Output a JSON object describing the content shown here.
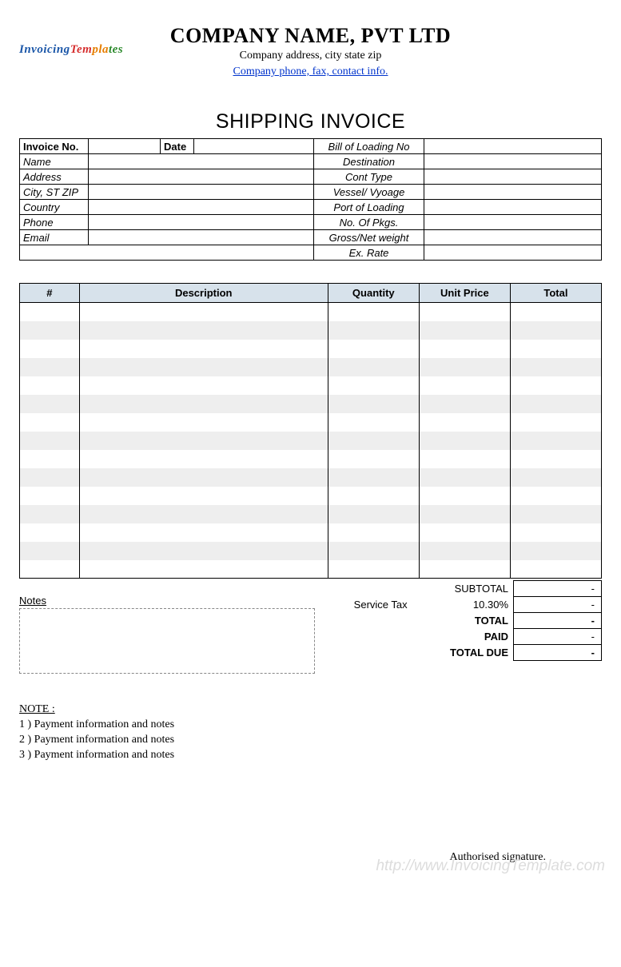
{
  "logo_parts": {
    "p1": "Invoicing",
    "p2": "Tem",
    "p3": "pla",
    "p4": "tes"
  },
  "header": {
    "company_name": "COMPANY NAME,  PVT LTD",
    "address": "Company address, city state zip",
    "contact_link": "Company phone, fax, contact info."
  },
  "doc_title": "SHIPPING INVOICE",
  "info": {
    "left": {
      "invoice_no": "Invoice No.",
      "date": "Date",
      "name": "Name",
      "address": "Address",
      "city": "City, ST ZIP",
      "country": "Country",
      "phone": "Phone",
      "email": "Email"
    },
    "right": {
      "bill_loading": "Bill of Loading No",
      "destination": "Destination",
      "cont_type": "Cont Type",
      "vessel": "Vessel/ Vyoage",
      "port": "Port of Loading",
      "pkgs": "No. Of Pkgs.",
      "weight": "Gross/Net weight",
      "ex_rate": "Ex. Rate"
    }
  },
  "items": {
    "headers": {
      "num": "#",
      "desc": "Description",
      "qty": "Quantity",
      "price": "Unit Price",
      "total": "Total"
    },
    "row_count": 15,
    "alt_row_color": "#eeeeee",
    "header_bg": "#d7e2eb"
  },
  "notes_label": "Notes",
  "totals": {
    "subtotal_label": "SUBTOTAL",
    "service_tax_label": "Service Tax",
    "service_tax_rate": "10.30%",
    "total_label": "TOTAL",
    "paid_label": "PAID",
    "total_due_label": "TOTAL DUE",
    "dash": "-"
  },
  "footer_notes": {
    "header": "NOTE :",
    "lines": [
      "1 )  Payment information and notes",
      "2 )  Payment information and notes",
      "3 )  Payment information and notes"
    ]
  },
  "signature": "Authorised signature.",
  "watermark": "http://www.InvoicingTemplate.com",
  "colors": {
    "text": "#000000",
    "link": "#0033cc",
    "border": "#000000",
    "bg": "#ffffff"
  }
}
